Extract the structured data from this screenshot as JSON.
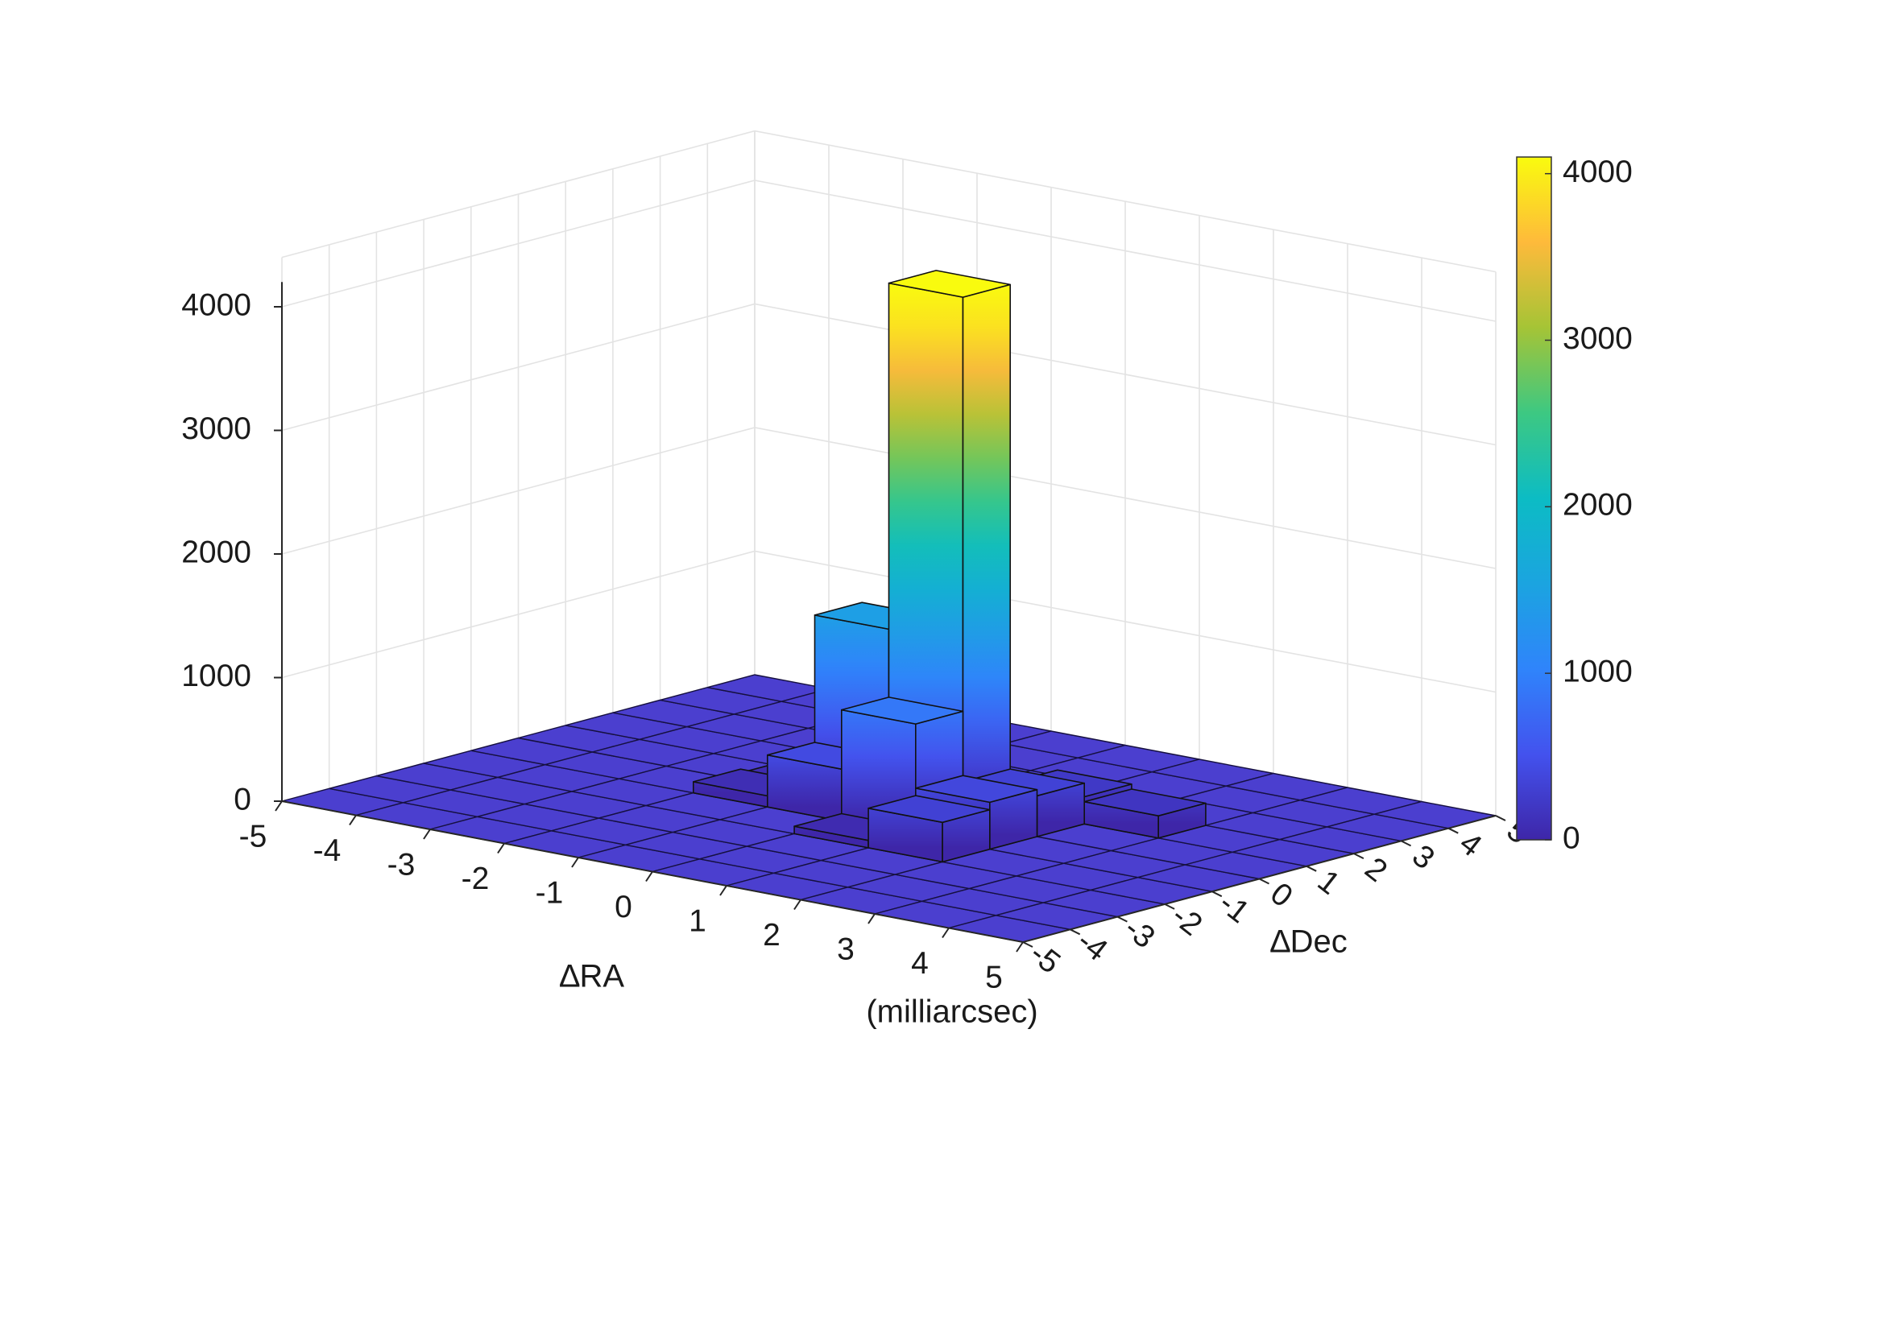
{
  "chart_data": {
    "type": "bar3d",
    "xlabel": "∆RA",
    "ylabel": "∆Dec",
    "units_label": "(milliarcsec)",
    "x_ticks": [
      "-5",
      "-4",
      "-3",
      "-2",
      "-1",
      "0",
      "1",
      "2",
      "3",
      "4",
      "5"
    ],
    "y_ticks": [
      "-5",
      "-4",
      "-3",
      "-2",
      "-1",
      "0",
      "1",
      "2",
      "3",
      "4",
      "5"
    ],
    "z_ticks": [
      "0",
      "1000",
      "2000",
      "3000",
      "4000"
    ],
    "xlim": [
      -5,
      5
    ],
    "ylim": [
      -5,
      5
    ],
    "zlim": [
      0,
      4200
    ],
    "grid": true,
    "colormap": "parula",
    "colorbar": {
      "ticks": [
        "0",
        "1000",
        "2000",
        "3000",
        "4000"
      ],
      "range": [
        0,
        4100
      ],
      "placement": "right"
    },
    "bins": {
      "note_units": "bin centers in milliarcsec, values are counts",
      "cells": [
        {
          "x": 0.5,
          "y": 0.5,
          "value": 4250
        },
        {
          "x": -0.5,
          "y": 0.5,
          "value": 1450
        },
        {
          "x": 0.5,
          "y": -0.5,
          "value": 900
        },
        {
          "x": -0.5,
          "y": -0.5,
          "value": 420
        },
        {
          "x": 1.5,
          "y": -0.5,
          "value": 380
        },
        {
          "x": 1.5,
          "y": 0.5,
          "value": 330
        },
        {
          "x": 1.5,
          "y": -1.5,
          "value": 320
        },
        {
          "x": 1.5,
          "y": 1.5,
          "value": 220
        },
        {
          "x": 2.5,
          "y": 1.5,
          "value": 180
        },
        {
          "x": -0.5,
          "y": 1.5,
          "value": 150
        },
        {
          "x": 0.5,
          "y": 1.5,
          "value": 120
        },
        {
          "x": -1.5,
          "y": -0.5,
          "value": 90
        },
        {
          "x": -1.5,
          "y": 0.5,
          "value": 60
        },
        {
          "x": 0.5,
          "y": -1.5,
          "value": 60
        }
      ]
    }
  }
}
